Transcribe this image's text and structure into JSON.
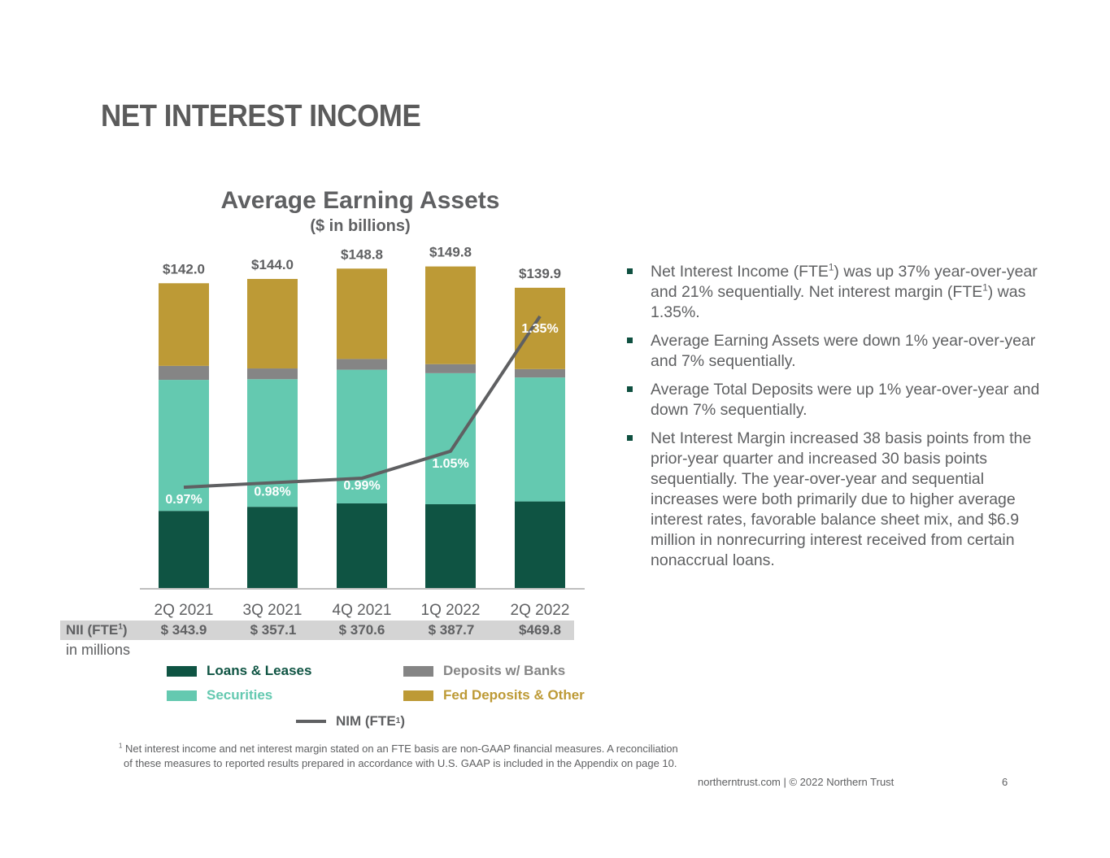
{
  "slide": {
    "title": "NET INTEREST INCOME",
    "page_number": "6",
    "footer": "northerntrust.com  |  © 2022 Northern Trust"
  },
  "chart_data": {
    "type": "bar",
    "stacked": true,
    "title": "Average Earning Assets",
    "subtitle": "($ in billions)",
    "categories": [
      "2Q 2021",
      "3Q 2021",
      "4Q 2021",
      "1Q 2022",
      "2Q 2022"
    ],
    "totals": [
      "$142.0",
      "$144.0",
      "$148.8",
      "$149.8",
      "$139.9"
    ],
    "total_values": [
      142.0,
      144.0,
      148.8,
      149.8,
      139.9
    ],
    "series": [
      {
        "name": "Loans & Leases",
        "color": "#0f5443",
        "values": [
          36.2,
          38.1,
          39.7,
          39.3,
          40.6
        ]
      },
      {
        "name": "Securities",
        "color": "#64c9b0",
        "values": [
          60.9,
          59.3,
          62.1,
          60.9,
          57.6
        ]
      },
      {
        "name": "Deposits w/ Banks",
        "color": "#858585",
        "values": [
          6.5,
          5.0,
          5.0,
          4.2,
          3.9
        ]
      },
      {
        "name": "Fed Deposits & Other",
        "color": "#bd9a36",
        "values": [
          38.4,
          41.6,
          42.0,
          45.4,
          37.8
        ]
      }
    ],
    "line": {
      "name": "NIM (FTE1)",
      "color": "#5f6062",
      "values": [
        0.97,
        0.98,
        0.99,
        1.05,
        1.35
      ],
      "labels": [
        "0.97%",
        "0.98%",
        "0.99%",
        "1.05%",
        "1.35%"
      ]
    },
    "ylim": [
      0,
      165
    ]
  },
  "nii": {
    "label": "NII (FTE",
    "label_sup": "1",
    "label_close": ")",
    "sublabel": "in millions",
    "values": [
      "$ 343.9",
      "$ 357.1",
      "$ 370.6",
      "$ 387.7",
      "$469.8"
    ]
  },
  "legend": {
    "loans": "Loans & Leases",
    "securities": "Securities",
    "deposits": "Deposits w/ Banks",
    "fed": "Fed Deposits & Other",
    "nim": "NIM (FTE",
    "nim_sup": "1",
    "nim_close": ")"
  },
  "bullets": [
    {
      "a": "Net Interest Income (FTE",
      "s": "1",
      "b": ") was up 37% year-over-year and 21% sequentially. Net interest margin (FTE",
      "s2": "1",
      "c": ") was 1.35%."
    },
    {
      "a": "Average Earning Assets were down 1% year-over-year and 7% sequentially."
    },
    {
      "a": "Average Total Deposits were up 1% year-over-year and down 7% sequentially."
    },
    {
      "a": "Net Interest Margin increased 38 basis points from the prior-year quarter and increased 30 basis points sequentially. The year-over-year and sequential increases were both primarily due to higher average interest rates, favorable balance sheet mix, and $6.9 million in nonrecurring interest received from certain nonaccrual loans."
    }
  ],
  "footnote": {
    "sup": "1",
    "line1": " Net interest income and net interest margin stated on an FTE basis are non-GAAP financial measures. A reconciliation",
    "line2": "of these measures to reported results prepared in accordance with U.S. GAAP is included in the Appendix on page 10."
  }
}
